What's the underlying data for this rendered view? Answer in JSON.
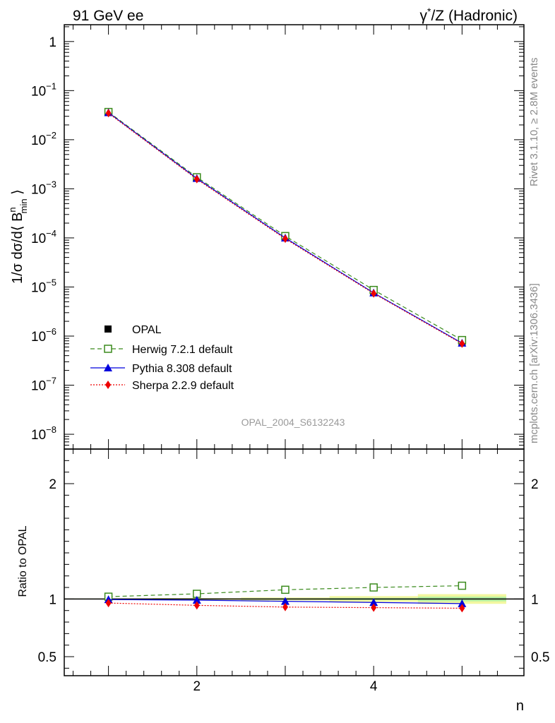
{
  "header": {
    "left_title": "91 GeV ee",
    "right_title_pre": "γ",
    "right_title_sup": "*",
    "right_title_post": "/Z (Hadronic)"
  },
  "side_labels": {
    "rivet": "Rivet 3.1.10, ≥ 2.8M events",
    "mcplots": "mcplots.cern.ch [arXiv:1306.3436]"
  },
  "watermark": "OPAL_2004_S6132243",
  "chart_data": [
    {
      "type": "line",
      "panel": "main",
      "y_scale": "log",
      "ylabel": "1/σ dσ/d⟨ B^n_min ⟩",
      "xlim": [
        0.5,
        5.7
      ],
      "ylim": [
        5e-09,
        2.2
      ],
      "y_ticks": [
        {
          "value": 1,
          "mantissa": "1",
          "exp": ""
        },
        {
          "value": 0.1,
          "mantissa": "10",
          "exp": "−1"
        },
        {
          "value": 0.01,
          "mantissa": "10",
          "exp": "−2"
        },
        {
          "value": 0.001,
          "mantissa": "10",
          "exp": "−3"
        },
        {
          "value": 0.0001,
          "mantissa": "10",
          "exp": "−4"
        },
        {
          "value": 1e-05,
          "mantissa": "10",
          "exp": "−5"
        },
        {
          "value": 1e-06,
          "mantissa": "10",
          "exp": "−6"
        },
        {
          "value": 1e-07,
          "mantissa": "10",
          "exp": "−7"
        },
        {
          "value": 1e-08,
          "mantissa": "10",
          "exp": "−8"
        }
      ],
      "x": [
        1,
        2,
        3,
        4,
        5
      ],
      "series": [
        {
          "name": "OPAL",
          "color": "#000000",
          "marker": "square-filled",
          "line": "none",
          "values": [
            0.036,
            0.00165,
            0.000102,
            7.9e-06,
            7.5e-07
          ]
        },
        {
          "name": "Herwig 7.2.1 default",
          "color": "#3a8a1c",
          "marker": "square-open",
          "line": "dashed",
          "values": [
            0.0367,
            0.00172,
            0.000109,
            8.7e-06,
            8.3e-07
          ]
        },
        {
          "name": "Pythia 8.308 default",
          "color": "#0000dd",
          "marker": "triangle",
          "line": "solid",
          "values": [
            0.0357,
            0.00163,
            0.0001,
            7.6e-06,
            7.2e-07
          ]
        },
        {
          "name": "Sherpa 2.2.9 default",
          "color": "#ee0000",
          "marker": "diamond",
          "line": "dotted",
          "values": [
            0.0347,
            0.00157,
            9.6e-05,
            7.4e-06,
            7e-07
          ]
        }
      ]
    },
    {
      "type": "line",
      "panel": "ratio",
      "ylabel": "Ratio to OPAL",
      "xlabel": "n",
      "xlim": [
        0.5,
        5.7
      ],
      "ylim": [
        0.335,
        2.3
      ],
      "y_ticks": [
        0.5,
        1,
        2
      ],
      "y_tick_labels": [
        "0.5",
        "1",
        "2"
      ],
      "x_ticks": [
        2,
        4
      ],
      "x_tick_labels": [
        "2",
        "4"
      ],
      "reference": 1,
      "uncertainty_band": {
        "x_edges": [
          0.5,
          1.5,
          2.5,
          3.5,
          4.5,
          5.5
        ],
        "stat_half_width": [
          0.002,
          0.004,
          0.006,
          0.01,
          0.02
        ],
        "total_half_width": [
          0.004,
          0.008,
          0.013,
          0.025,
          0.042
        ]
      },
      "x": [
        1,
        2,
        3,
        4,
        5
      ],
      "series": [
        {
          "name": "Herwig 7.2.1 default",
          "color": "#3a8a1c",
          "marker": "square-open",
          "line": "dashed",
          "values": [
            1.02,
            1.045,
            1.08,
            1.1,
            1.115
          ]
        },
        {
          "name": "Pythia 8.308 default",
          "color": "#0000dd",
          "marker": "triangle",
          "line": "solid",
          "values": [
            0.995,
            0.99,
            0.98,
            0.97,
            0.96
          ]
        },
        {
          "name": "Sherpa 2.2.9 default",
          "color": "#ee0000",
          "marker": "diamond",
          "line": "dotted",
          "values": [
            0.965,
            0.945,
            0.93,
            0.925,
            0.92
          ]
        }
      ]
    }
  ]
}
